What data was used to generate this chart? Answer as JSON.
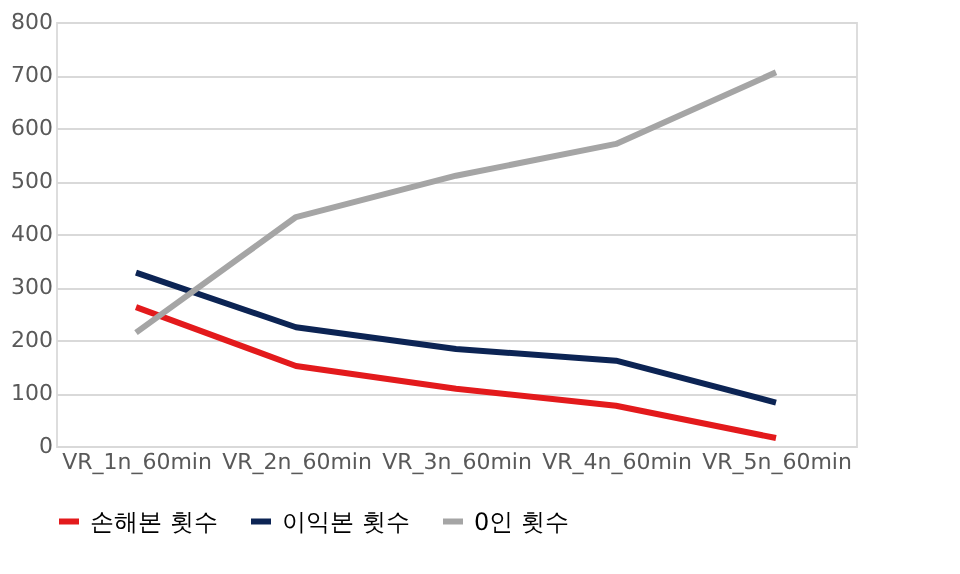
{
  "chart_data": {
    "type": "line",
    "categories": [
      "VR_1n_60min",
      "VR_2n_60min",
      "VR_3n_60min",
      "VR_4n_60min",
      "VR_5n_60min"
    ],
    "series": [
      {
        "name": "손해본 횟수",
        "color": "#e31a1c",
        "values": [
          262,
          151,
          108,
          76,
          15
        ]
      },
      {
        "name": "이익본 횟수",
        "color": "#0c2454",
        "values": [
          327,
          224,
          183,
          161,
          82
        ]
      },
      {
        "name": "0인 횟수",
        "color": "#a5a5a5",
        "values": [
          214,
          432,
          510,
          570,
          705
        ]
      }
    ],
    "ylim": [
      0,
      800
    ],
    "yticks": [
      0,
      100,
      200,
      300,
      400,
      500,
      600,
      700,
      800
    ],
    "grid": "y",
    "legend": "bottom",
    "marker": "none",
    "line_style": "solid"
  }
}
